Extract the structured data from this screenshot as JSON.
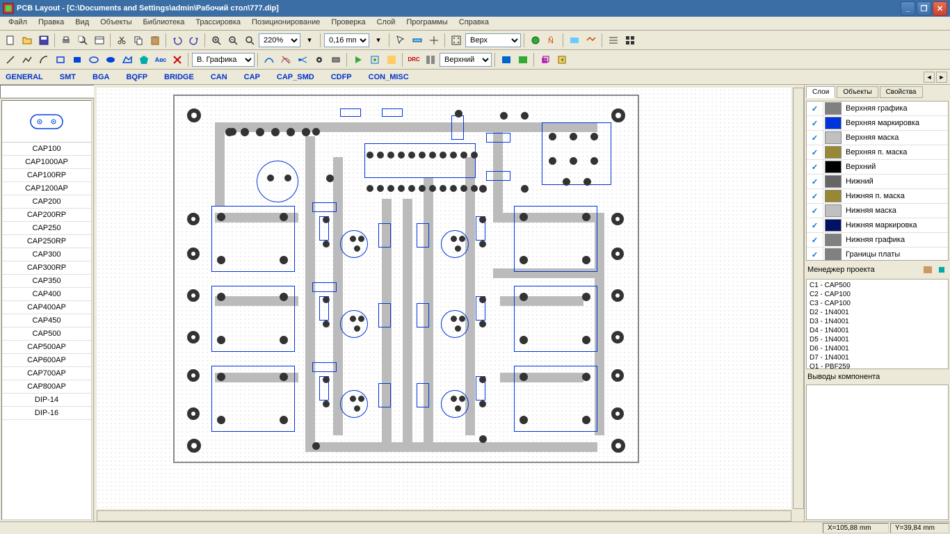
{
  "title": "PCB Layout - [C:\\Documents and Settings\\admin\\Рабочий стол\\777.dip]",
  "menu": [
    "Файл",
    "Правка",
    "Вид",
    "Объекты",
    "Библиотека",
    "Трассировка",
    "Позиционирование",
    "Проверка",
    "Слой",
    "Программы",
    "Справка"
  ],
  "toolbar1": {
    "zoom": "220%",
    "grid": "0,16 mm",
    "layer_sel": "Верх"
  },
  "toolbar2": {
    "style": "В. Графика",
    "layer2": "Верхний"
  },
  "categories": [
    "GENERAL",
    "SMT",
    "BGA",
    "BQFP",
    "BRIDGE",
    "CAN",
    "CAP",
    "CAP_SMD",
    "CDFP",
    "CON_MISC"
  ],
  "components": [
    "CAP100",
    "CAP1000AP",
    "CAP100RP",
    "CAP1200AP",
    "CAP200",
    "CAP200RP",
    "CAP250",
    "CAP250RP",
    "CAP300",
    "CAP300RP",
    "CAP350",
    "CAP400",
    "CAP400AP",
    "CAP450",
    "CAP500",
    "CAP500AP",
    "CAP600AP",
    "CAP700AP",
    "CAP800AP",
    "DIP-14",
    "DIP-16"
  ],
  "right_tabs": [
    "Слои",
    "Объекты",
    "Свойства"
  ],
  "layers": [
    {
      "name": "Верхняя графика",
      "color": "#808080"
    },
    {
      "name": "Верхняя маркировка",
      "color": "#0033dd"
    },
    {
      "name": "Верхняя маска",
      "color": "#c0c0c0"
    },
    {
      "name": "Верхняя п. маска",
      "color": "#998833"
    },
    {
      "name": "Верхний",
      "color": "#000000"
    },
    {
      "name": "Нижний",
      "color": "#666666"
    },
    {
      "name": "Нижняя п. маска",
      "color": "#998833"
    },
    {
      "name": "Нижняя маска",
      "color": "#c0c0c0"
    },
    {
      "name": "Нижняя маркировка",
      "color": "#001166"
    },
    {
      "name": "Нижняя графика",
      "color": "#808080"
    },
    {
      "name": "Границы платы",
      "color": "#808080"
    }
  ],
  "proj_hdr": "Менеджер проекта",
  "proj_items": [
    "C1 - CAP500",
    "C2 - CAP100",
    "C3 - CAP100",
    "D2 - 1N4001",
    "D3 - 1N4001",
    "D4 - 1N4001",
    "D5 - 1N4001",
    "D6 - 1N4001",
    "D7 - 1N4001",
    "Q1 - PBF259"
  ],
  "pins_hdr": "Выводы компонента",
  "status": {
    "x": "X=105,88 mm",
    "y": "Y=39,84 mm"
  },
  "colors": {
    "silk": "#0033dd",
    "copper": "#bbbbbb",
    "pad": "#333333"
  }
}
